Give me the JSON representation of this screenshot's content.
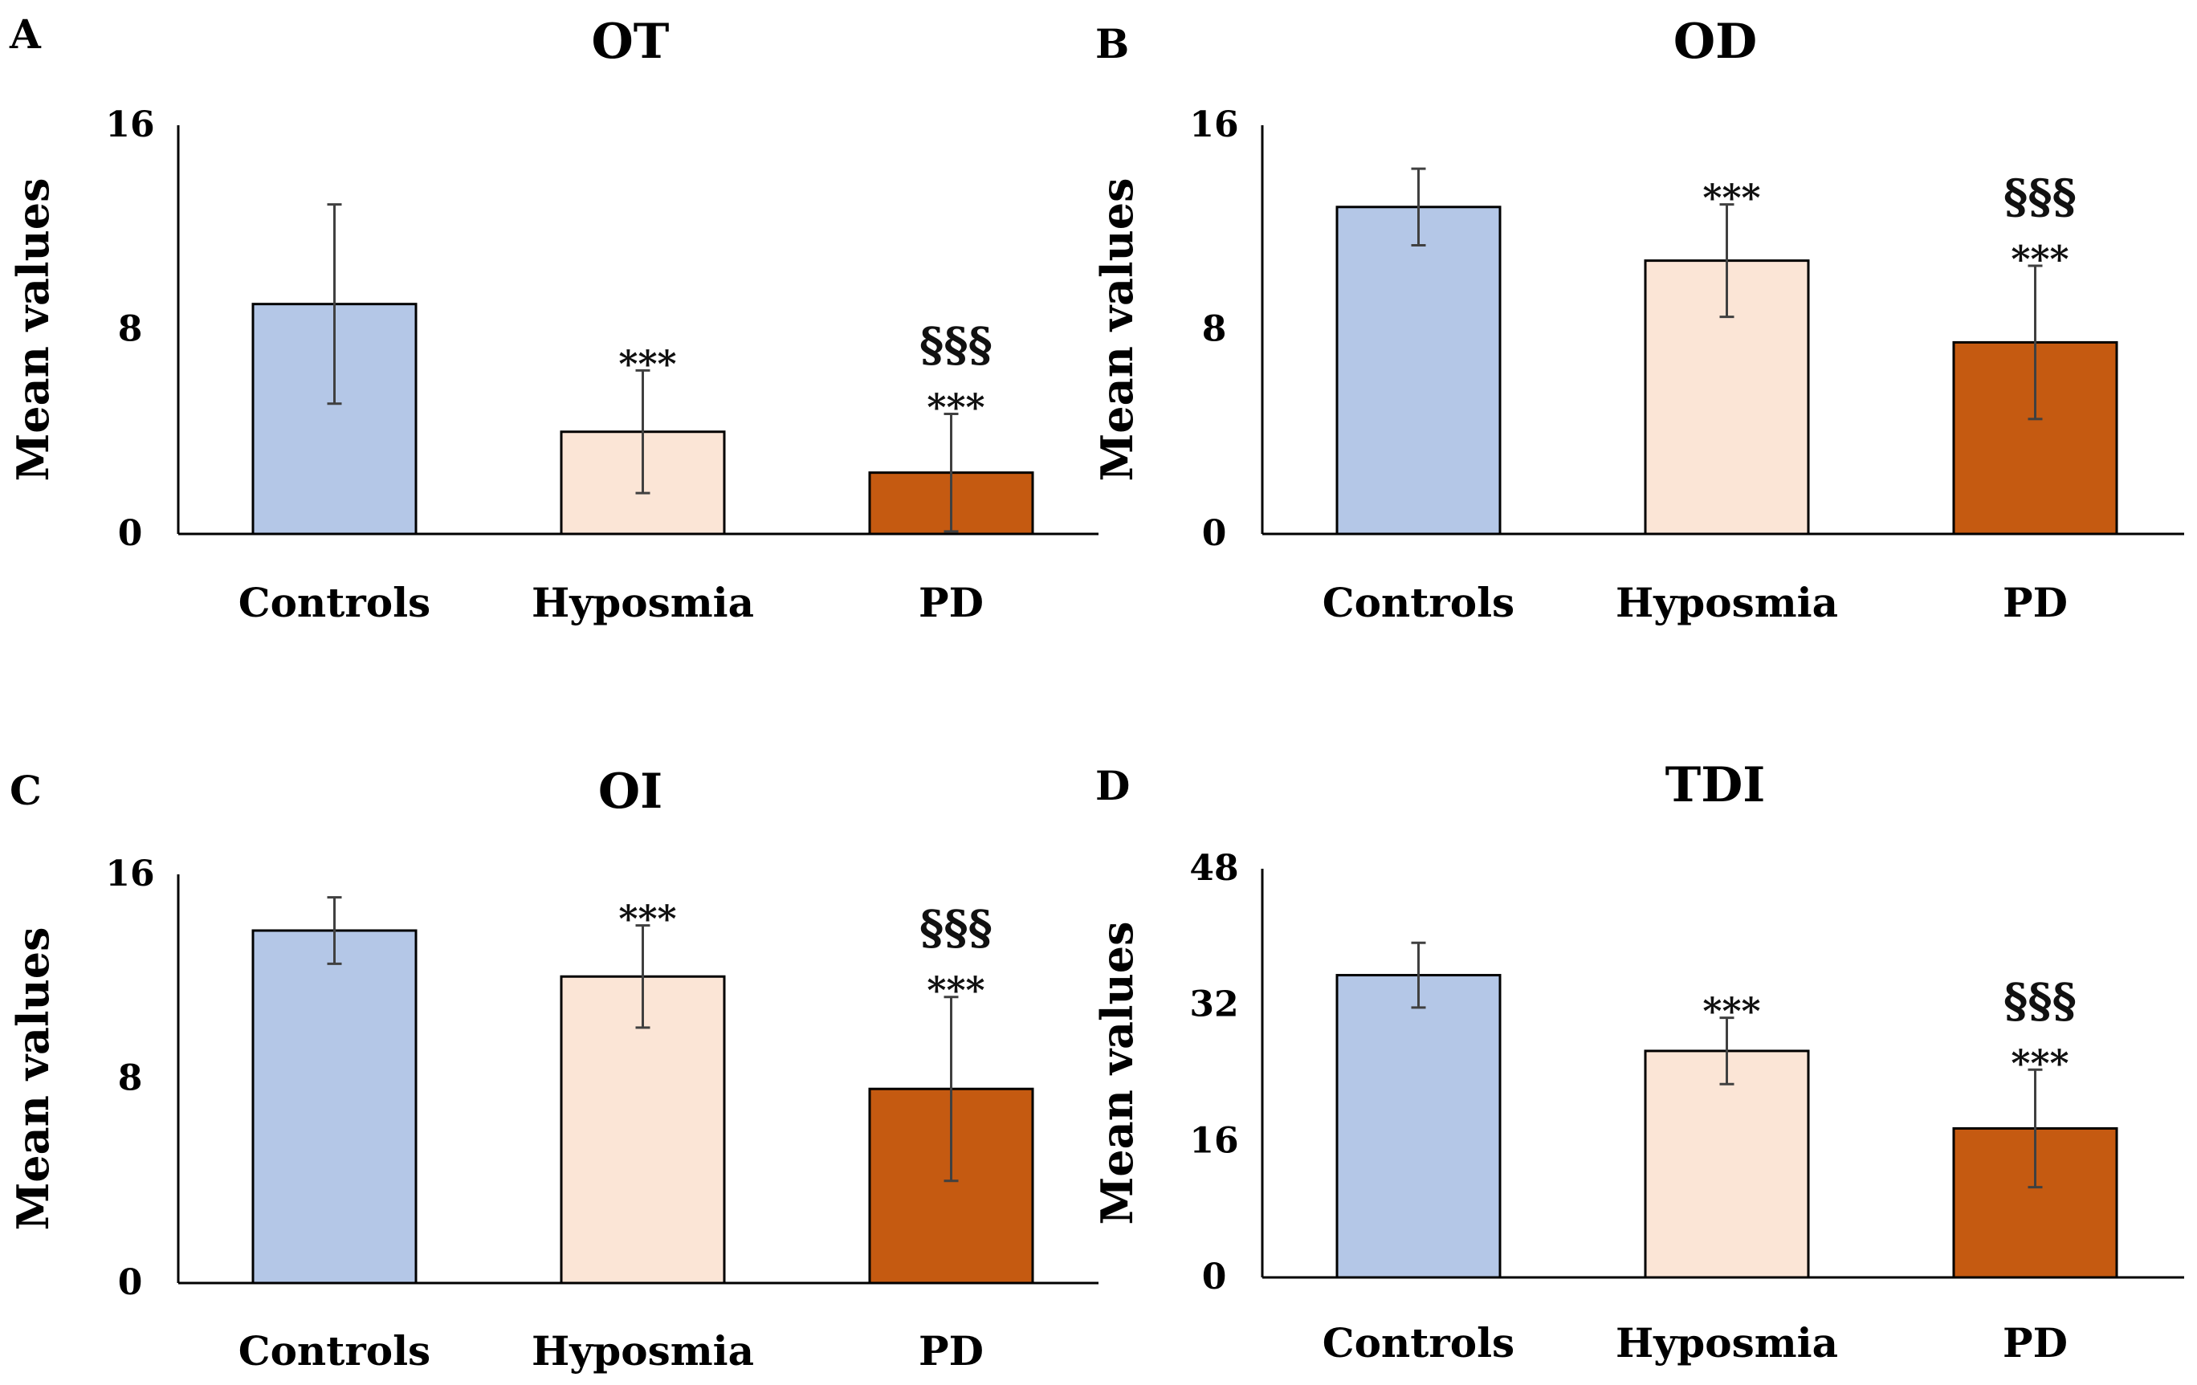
{
  "colors": {
    "controls": "#B4C7E7",
    "hyposmia": "#FBE5D6",
    "pd": "#C55A11",
    "axis": "#000000",
    "bar_edge": "#000000",
    "error_bar": "#404040"
  },
  "chart_data": [
    {
      "type": "bar",
      "panel": "A",
      "title": "OT",
      "xlabel": "",
      "ylabel": "Mean values",
      "ylim": [
        0,
        16
      ],
      "yticks": [
        "0",
        "8",
        "16"
      ],
      "categories": [
        "Controls",
        "Hyposmia",
        "PD"
      ],
      "values": [
        9.0,
        4.0,
        2.4
      ],
      "errors": [
        3.9,
        2.4,
        2.3
      ],
      "annotations": [
        {
          "category": "Hyposmia",
          "lines": [
            "***"
          ]
        },
        {
          "category": "PD",
          "lines": [
            "§§§",
            "***"
          ]
        }
      ]
    },
    {
      "type": "bar",
      "panel": "B",
      "title": "OD",
      "xlabel": "",
      "ylabel": "Mean values",
      "ylim": [
        0,
        16
      ],
      "yticks": [
        "0",
        "8",
        "16"
      ],
      "categories": [
        "Controls",
        "Hyposmia",
        "PD"
      ],
      "values": [
        12.8,
        10.7,
        7.5
      ],
      "errors": [
        1.5,
        2.2,
        3.0
      ],
      "annotations": [
        {
          "category": "Hyposmia",
          "lines": [
            "***"
          ]
        },
        {
          "category": "PD",
          "lines": [
            "§§§",
            "***"
          ]
        }
      ]
    },
    {
      "type": "bar",
      "panel": "C",
      "title": "OI",
      "xlabel": "",
      "ylabel": "Mean values",
      "ylim": [
        0,
        16
      ],
      "yticks": [
        "0",
        "8",
        "16"
      ],
      "categories": [
        "Controls",
        "Hyposmia",
        "PD"
      ],
      "values": [
        13.8,
        12.0,
        7.6
      ],
      "errors": [
        1.3,
        2.0,
        3.6
      ],
      "annotations": [
        {
          "category": "Hyposmia",
          "lines": [
            "***"
          ]
        },
        {
          "category": "PD",
          "lines": [
            "§§§",
            "***"
          ]
        }
      ]
    },
    {
      "type": "bar",
      "panel": "D",
      "title": "TDI",
      "xlabel": "",
      "ylabel": "Mean values",
      "ylim": [
        0,
        48
      ],
      "yticks": [
        "0",
        "16",
        "32",
        "48"
      ],
      "categories": [
        "Controls",
        "Hyposmia",
        "PD"
      ],
      "values": [
        35.5,
        26.6,
        17.5
      ],
      "errors": [
        3.8,
        3.9,
        6.9
      ],
      "annotations": [
        {
          "category": "Hyposmia",
          "lines": [
            "***"
          ]
        },
        {
          "category": "PD",
          "lines": [
            "§§§",
            "***"
          ]
        }
      ]
    }
  ]
}
